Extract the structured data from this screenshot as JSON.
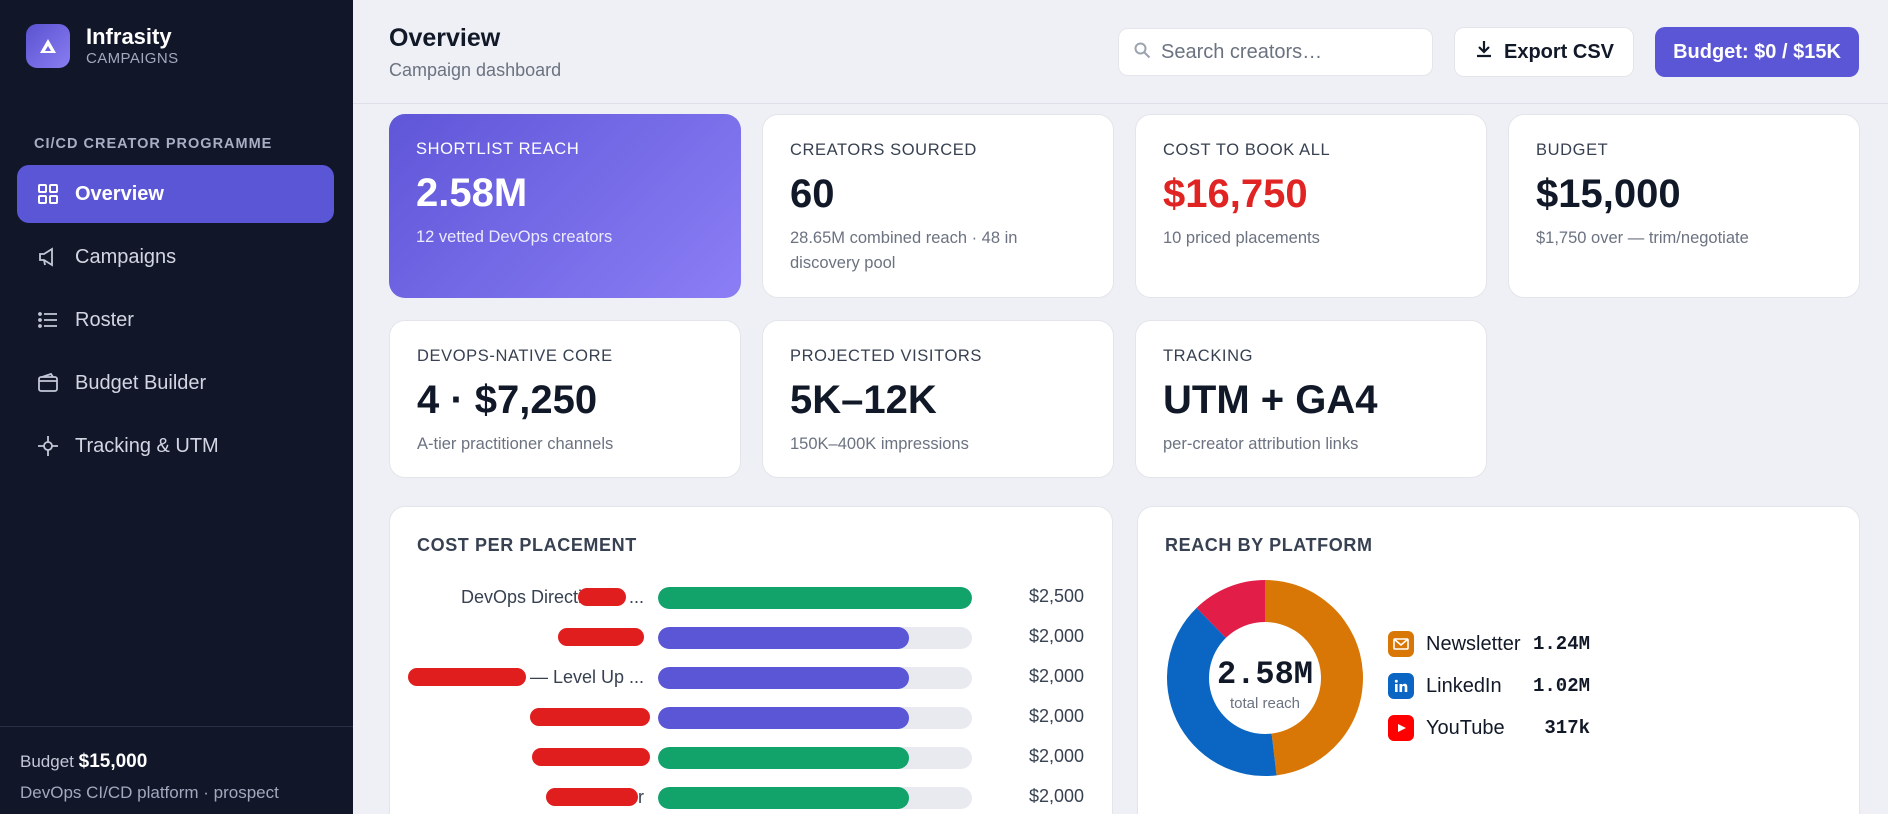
{
  "brand": {
    "name": "Infrasity",
    "sub": "CAMPAIGNS"
  },
  "sidebar": {
    "section": "CI/CD CREATOR PROGRAMME",
    "items": [
      {
        "label": "Overview",
        "icon": "grid-icon"
      },
      {
        "label": "Campaigns",
        "icon": "megaphone-icon"
      },
      {
        "label": "Roster",
        "icon": "list-icon"
      },
      {
        "label": "Budget Builder",
        "icon": "wallet-icon"
      },
      {
        "label": "Tracking & UTM",
        "icon": "crosshair-icon"
      }
    ],
    "footer": {
      "budget_prefix": "Budget",
      "budget_value": "$15,000",
      "desc": "DevOps CI/CD platform · prospect"
    }
  },
  "header": {
    "title": "Overview",
    "subtitle": "Campaign dashboard",
    "search_placeholder": "Search creators…",
    "export_label": "Export CSV",
    "budget_label": "Budget: $0 / $15K"
  },
  "kpis": [
    {
      "label": "SHORTLIST REACH",
      "value": "2.58M",
      "sub": "12 vetted DevOps creators"
    },
    {
      "label": "CREATORS SOURCED",
      "value": "60",
      "sub": "28.65M combined reach · 48 in discovery pool"
    },
    {
      "label": "COST TO BOOK ALL",
      "value": "$16,750",
      "sub": "10 priced placements"
    },
    {
      "label": "BUDGET",
      "value": "$15,000",
      "sub": "$1,750 over — trim/negotiate"
    },
    {
      "label": "DEVOPS-NATIVE CORE",
      "value": "4 · $7,250",
      "sub": "A-tier practitioner channels"
    },
    {
      "label": "PROJECTED VISITORS",
      "value": "5K–12K",
      "sub": "150K–400K impressions"
    },
    {
      "label": "TRACKING",
      "value": "UTM + GA4",
      "sub": "per-creator attribution links"
    }
  ],
  "cost_panel": {
    "title": "COST PER PLACEMENT",
    "rows": [
      {
        "name": "DevOps Directive — ...",
        "value": "$2,500",
        "amount": 2500,
        "color": "#12a36b"
      },
      {
        "name": "",
        "value": "$2,000",
        "amount": 2000,
        "color": "#5a56d6"
      },
      {
        "name": "— Level Up ...",
        "value": "$2,000",
        "amount": 2000,
        "color": "#5a56d6"
      },
      {
        "name": "",
        "value": "$2,000",
        "amount": 2000,
        "color": "#5a56d6"
      },
      {
        "name": "",
        "value": "$2,000",
        "amount": 2000,
        "color": "#12a36b"
      },
      {
        "name": "r",
        "value": "$2,000",
        "amount": 2000,
        "color": "#12a36b"
      }
    ]
  },
  "reach_panel": {
    "title": "REACH BY PLATFORM",
    "center_value": "2.58M",
    "center_label": "total reach",
    "platforms": [
      {
        "name": "Newsletter",
        "value": "1.24M",
        "amount": 1.24,
        "color": "#d97706",
        "icon": "mail-icon"
      },
      {
        "name": "LinkedIn",
        "value": "1.02M",
        "amount": 1.02,
        "color": "#0a66c2",
        "icon": "linkedin-icon"
      },
      {
        "name": "YouTube",
        "value": "317k",
        "amount": 0.317,
        "color": "#e11d48",
        "icon": "youtube-icon"
      }
    ]
  }
}
